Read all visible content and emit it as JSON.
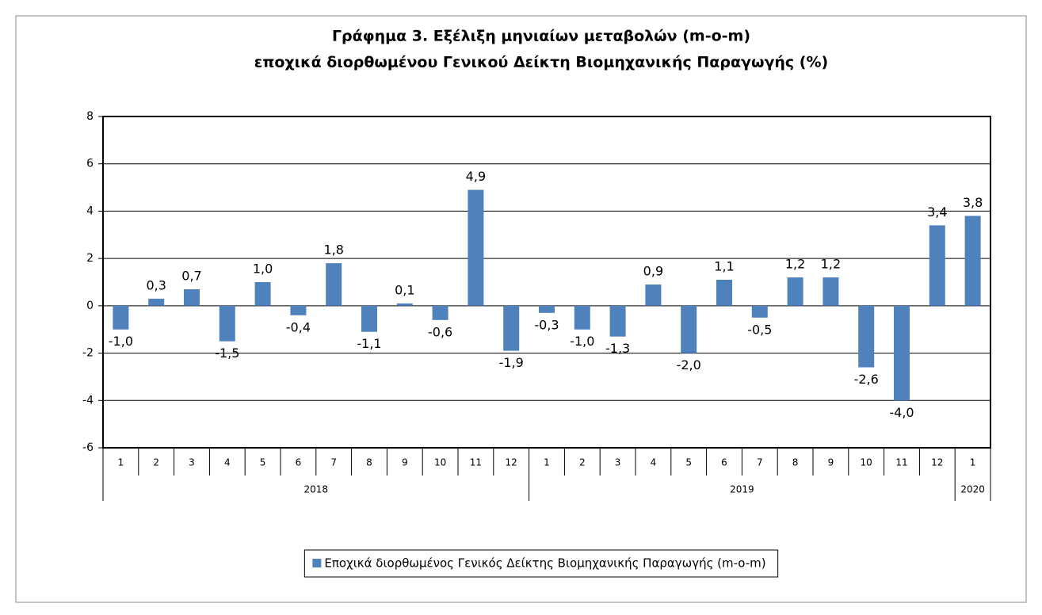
{
  "chart_data": {
    "type": "bar",
    "title": [
      "Γράφημα 3. Εξέλιξη μηνιαίων μεταβολών (m-o-m)",
      "εποχικά διορθωμένου Γενικού Δείκτη Βιομηχανικής Παραγωγής (%)"
    ],
    "category_groups": [
      {
        "label": "2018",
        "categories": [
          "1",
          "2",
          "3",
          "4",
          "5",
          "6",
          "7",
          "8",
          "9",
          "10",
          "11",
          "12"
        ]
      },
      {
        "label": "2019",
        "categories": [
          "1",
          "2",
          "3",
          "4",
          "5",
          "6",
          "7",
          "8",
          "9",
          "10",
          "11",
          "12"
        ]
      },
      {
        "label": "2020",
        "categories": [
          "1"
        ]
      }
    ],
    "series": [
      {
        "name": "Εποχικά διορθωμένος Γενικός Δείκτης Βιομηχανικής Παραγωγής (m-o-m)",
        "color": "#4f81bd",
        "values": [
          -1.0,
          0.3,
          0.7,
          -1.5,
          1.0,
          -0.4,
          1.8,
          -1.1,
          0.1,
          -0.6,
          4.9,
          -1.9,
          -0.3,
          -1.0,
          -1.3,
          0.9,
          -2.0,
          1.1,
          -0.5,
          1.2,
          1.2,
          -2.6,
          -4.0,
          3.4,
          3.8
        ],
        "value_labels": [
          "-1,0",
          "0,3",
          "0,7",
          "-1,5",
          "1,0",
          "-0,4",
          "1,8",
          "-1,1",
          "0,1",
          "-0,6",
          "4,9",
          "-1,9",
          "-0,3",
          "-1,0",
          "-1,3",
          "0,9",
          "-2,0",
          "1,1",
          "-0,5",
          "1,2",
          "1,2",
          "-2,6",
          "-4,0",
          "3,4",
          "3,8"
        ]
      }
    ],
    "ylim": [
      -6,
      8
    ],
    "yticks": [
      -6,
      -4,
      -2,
      0,
      2,
      4,
      6,
      8
    ],
    "grid": true,
    "legend": "bottom"
  }
}
